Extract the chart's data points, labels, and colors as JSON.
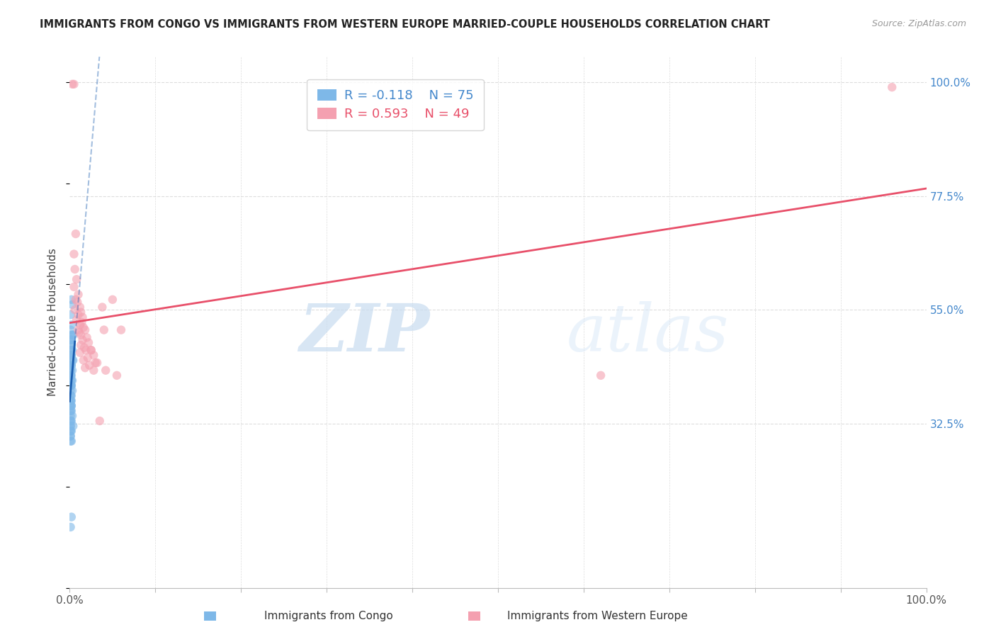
{
  "title": "IMMIGRANTS FROM CONGO VS IMMIGRANTS FROM WESTERN EUROPE MARRIED-COUPLE HOUSEHOLDS CORRELATION CHART",
  "source": "Source: ZipAtlas.com",
  "ylabel": "Married-couple Households",
  "ytick_labels": [
    "100.0%",
    "77.5%",
    "55.0%",
    "32.5%"
  ],
  "ytick_values": [
    1.0,
    0.775,
    0.55,
    0.325
  ],
  "watermark_zip": "ZIP",
  "watermark_atlas": "atlas",
  "congo_R": -0.118,
  "congo_N": 75,
  "western_europe_R": 0.593,
  "western_europe_N": 49,
  "congo_color": "#7EB8E8",
  "western_europe_color": "#F4A0B0",
  "congo_line_color": "#1A5DAF",
  "western_europe_line_color": "#E8506A",
  "legend_label_congo": "Immigrants from Congo",
  "legend_label_western": "Immigrants from Western Europe",
  "congo_points_x": [
    0.002,
    0.003,
    0.001,
    0.002,
    0.001,
    0.003,
    0.002,
    0.004,
    0.001,
    0.002,
    0.001,
    0.002,
    0.001,
    0.001,
    0.002,
    0.003,
    0.002,
    0.001,
    0.001,
    0.002,
    0.001,
    0.003,
    0.004,
    0.002,
    0.001,
    0.001,
    0.002,
    0.001,
    0.001,
    0.003,
    0.001,
    0.002,
    0.001,
    0.001,
    0.002,
    0.001,
    0.003,
    0.002,
    0.001,
    0.001,
    0.001,
    0.002,
    0.001,
    0.003,
    0.001,
    0.002,
    0.001,
    0.001,
    0.002,
    0.001,
    0.001,
    0.002,
    0.001,
    0.001,
    0.002,
    0.001,
    0.002,
    0.001,
    0.001,
    0.003,
    0.001,
    0.002,
    0.001,
    0.001,
    0.001,
    0.004,
    0.002,
    0.001,
    0.001,
    0.001,
    0.001,
    0.002,
    0.001,
    0.002,
    0.001
  ],
  "congo_points_y": [
    0.57,
    0.56,
    0.54,
    0.52,
    0.51,
    0.5,
    0.5,
    0.5,
    0.49,
    0.49,
    0.49,
    0.48,
    0.48,
    0.47,
    0.47,
    0.47,
    0.46,
    0.46,
    0.46,
    0.46,
    0.45,
    0.45,
    0.45,
    0.44,
    0.44,
    0.44,
    0.44,
    0.43,
    0.43,
    0.43,
    0.42,
    0.42,
    0.42,
    0.42,
    0.41,
    0.41,
    0.41,
    0.4,
    0.4,
    0.4,
    0.4,
    0.4,
    0.39,
    0.39,
    0.38,
    0.38,
    0.38,
    0.37,
    0.37,
    0.37,
    0.37,
    0.36,
    0.36,
    0.36,
    0.36,
    0.35,
    0.35,
    0.35,
    0.34,
    0.34,
    0.33,
    0.33,
    0.33,
    0.32,
    0.32,
    0.32,
    0.31,
    0.31,
    0.31,
    0.3,
    0.3,
    0.29,
    0.29,
    0.14,
    0.12
  ],
  "western_europe_points_x": [
    0.003,
    0.005,
    0.007,
    0.005,
    0.006,
    0.008,
    0.005,
    0.01,
    0.007,
    0.009,
    0.012,
    0.006,
    0.013,
    0.01,
    0.015,
    0.008,
    0.014,
    0.012,
    0.016,
    0.01,
    0.018,
    0.011,
    0.013,
    0.02,
    0.015,
    0.022,
    0.013,
    0.017,
    0.025,
    0.019,
    0.012,
    0.028,
    0.021,
    0.016,
    0.03,
    0.023,
    0.018,
    0.035,
    0.025,
    0.04,
    0.028,
    0.05,
    0.032,
    0.055,
    0.038,
    0.06,
    0.042,
    0.62,
    0.96
  ],
  "western_europe_points_y": [
    0.996,
    0.996,
    0.7,
    0.66,
    0.63,
    0.61,
    0.595,
    0.58,
    0.57,
    0.565,
    0.555,
    0.55,
    0.545,
    0.54,
    0.535,
    0.53,
    0.525,
    0.52,
    0.515,
    0.51,
    0.51,
    0.505,
    0.5,
    0.495,
    0.49,
    0.485,
    0.48,
    0.475,
    0.47,
    0.47,
    0.465,
    0.46,
    0.455,
    0.45,
    0.445,
    0.44,
    0.435,
    0.33,
    0.47,
    0.51,
    0.43,
    0.57,
    0.445,
    0.42,
    0.555,
    0.51,
    0.43,
    0.42,
    0.99
  ],
  "xlim": [
    0.0,
    1.0
  ],
  "ylim": [
    0.0,
    1.05
  ],
  "background_color": "#FFFFFF",
  "grid_color": "#DDDDDD"
}
